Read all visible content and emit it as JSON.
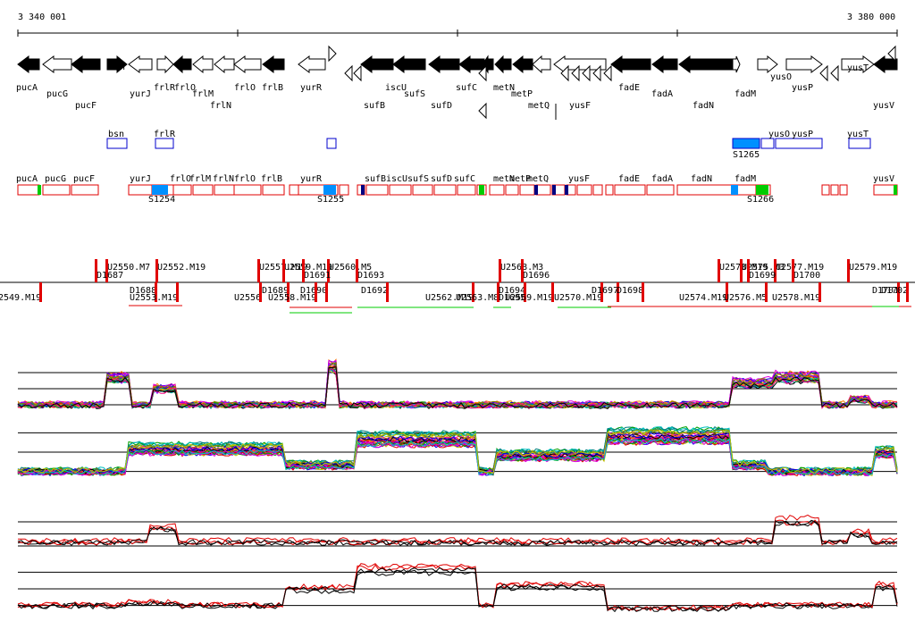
{
  "ruler": {
    "start_label": "3 340 001",
    "end_label": "3 380 000"
  },
  "genes_top": [
    {
      "name": "pucA",
      "dir": "L",
      "filled": true
    },
    {
      "name": "pucG",
      "dir": "L",
      "filled": false
    },
    {
      "name": "pucF",
      "dir": "L",
      "filled": true
    },
    {
      "name": "bsn",
      "dir": "R",
      "filled": true
    },
    {
      "name": "yurJ",
      "dir": "L",
      "filled": false
    },
    {
      "name": "frlR",
      "dir": "R",
      "filled": false
    },
    {
      "name": "frlO",
      "dir": "L",
      "filled": true
    },
    {
      "name": "frlM",
      "dir": "L",
      "filled": false
    },
    {
      "name": "frlN",
      "dir": "L",
      "filled": false
    },
    {
      "name": "frlO",
      "dir": "L",
      "filled": false
    },
    {
      "name": "frlB",
      "dir": "L",
      "filled": true
    },
    {
      "name": "yurR",
      "dir": "L",
      "filled": false
    },
    {
      "name": "iscU",
      "dir": "L",
      "filled": true
    },
    {
      "name": "sufB",
      "dir": "L",
      "filled": true
    },
    {
      "name": "sufS",
      "dir": "L",
      "filled": true
    },
    {
      "name": "sufD",
      "dir": "L",
      "filled": true
    },
    {
      "name": "sufC",
      "dir": "L",
      "filled": true
    },
    {
      "name": "metN",
      "dir": "L",
      "filled": true
    },
    {
      "name": "metP",
      "dir": "L",
      "filled": true
    },
    {
      "name": "metQ",
      "dir": "L",
      "filled": false
    },
    {
      "name": "yusF",
      "dir": "L",
      "filled": false
    },
    {
      "name": "fadE",
      "dir": "L",
      "filled": true
    },
    {
      "name": "fadA",
      "dir": "L",
      "filled": true
    },
    {
      "name": "fadN",
      "dir": "L",
      "filled": true
    },
    {
      "name": "fadM",
      "dir": "R",
      "filled": false
    },
    {
      "name": "yusO",
      "dir": "R",
      "filled": false
    },
    {
      "name": "yusP",
      "dir": "R",
      "filled": false
    },
    {
      "name": "yusT",
      "dir": "R",
      "filled": false
    },
    {
      "name": "yusV",
      "dir": "L",
      "filled": true
    }
  ],
  "blue_boxes_labels": [
    "bsn",
    "frlR",
    "yusO",
    "yusP",
    "yusT",
    "S1265"
  ],
  "red_boxes_labels": [
    "pucA",
    "pucG",
    "pucF",
    "yurJ",
    "frlO",
    "frlM",
    "frlN",
    "frlO",
    "frlB",
    "yurR",
    "sufB",
    "iscU",
    "sufS",
    "sufD",
    "sufC",
    "metN",
    "metP",
    "metQ",
    "yusF",
    "fadE",
    "fadA",
    "fadN",
    "fadM",
    "yusV",
    "S1254",
    "S1255",
    "S1266"
  ],
  "tu_labels_upper": [
    "U2550.M7",
    "U2552.M19",
    "U2557.M19",
    "U2559.M19",
    "U2560.M5",
    "D1693",
    "U2568.M3",
    "U2573.M19",
    "U2575.M3",
    "U2577.M19",
    "U2579.M19",
    "D1687",
    "D1691",
    "D1696",
    "D1699",
    "D1700"
  ],
  "tu_labels_lower": [
    "2549.M19",
    "D1688",
    "U2553.M19",
    "U2556",
    "D1689",
    "D1690",
    "U2558.M19",
    "D1692",
    "U2562.M19",
    "U2563.M8",
    "D1694",
    "D1695",
    "U2569.M19",
    "U2570.M19",
    "D1697",
    "D1698",
    "U2574.M19",
    "U2576.M5",
    "U2578.M19",
    "D1701",
    "D1702"
  ],
  "colors": {
    "red": "#e00000",
    "blue": "#0090ff",
    "green": "#00cc00",
    "black": "#000000"
  }
}
